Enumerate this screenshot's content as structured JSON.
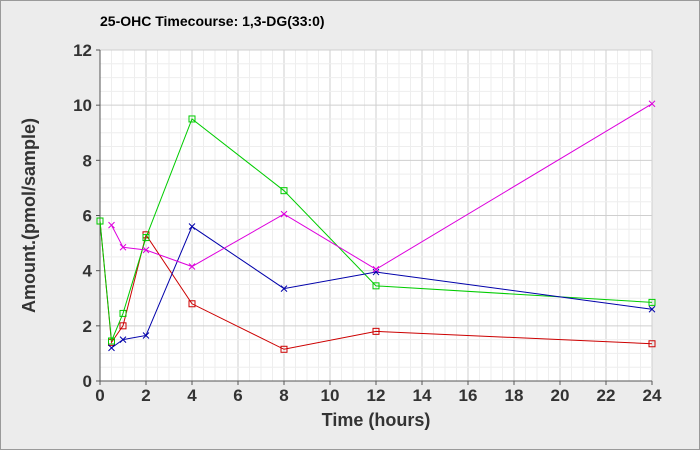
{
  "chart_data": {
    "type": "line",
    "title": "25-OHC Timecourse: 1,3-DG(33:0)",
    "xlabel": "Time (hours)",
    "ylabel": "Amount.(pmol/sample)",
    "xlim": [
      0,
      24
    ],
    "ylim": [
      0,
      12
    ],
    "x_ticks": [
      0,
      2,
      4,
      6,
      8,
      10,
      12,
      14,
      16,
      18,
      20,
      22,
      24
    ],
    "y_ticks": [
      0,
      2,
      4,
      6,
      8,
      10,
      12
    ],
    "x_minor_step": 0.5,
    "y_minor_step": 0.5,
    "grid": true,
    "legend": "none",
    "series": [
      {
        "color": "#cc0000",
        "marker": "square",
        "x": [
          0,
          0.5,
          1,
          2,
          4,
          8,
          12,
          24
        ],
        "y": [
          5.8,
          1.4,
          2.0,
          5.3,
          2.8,
          1.15,
          1.8,
          1.35
        ]
      },
      {
        "color": "#00cc00",
        "marker": "square",
        "x": [
          0,
          0.5,
          1,
          2,
          4,
          8,
          12,
          24
        ],
        "y": [
          5.8,
          1.45,
          2.45,
          5.2,
          9.5,
          6.9,
          3.45,
          2.85
        ]
      },
      {
        "color": "#0000aa",
        "marker": "x",
        "x": [
          0.5,
          1,
          2,
          4,
          8,
          12,
          24
        ],
        "y": [
          1.2,
          1.5,
          1.65,
          5.6,
          3.35,
          3.95,
          2.6
        ]
      },
      {
        "color": "#dd00dd",
        "marker": "x",
        "x": [
          0.5,
          1,
          2,
          4,
          8,
          12,
          24
        ],
        "y": [
          5.65,
          4.85,
          4.75,
          4.15,
          6.05,
          4.05,
          10.05
        ]
      }
    ]
  }
}
